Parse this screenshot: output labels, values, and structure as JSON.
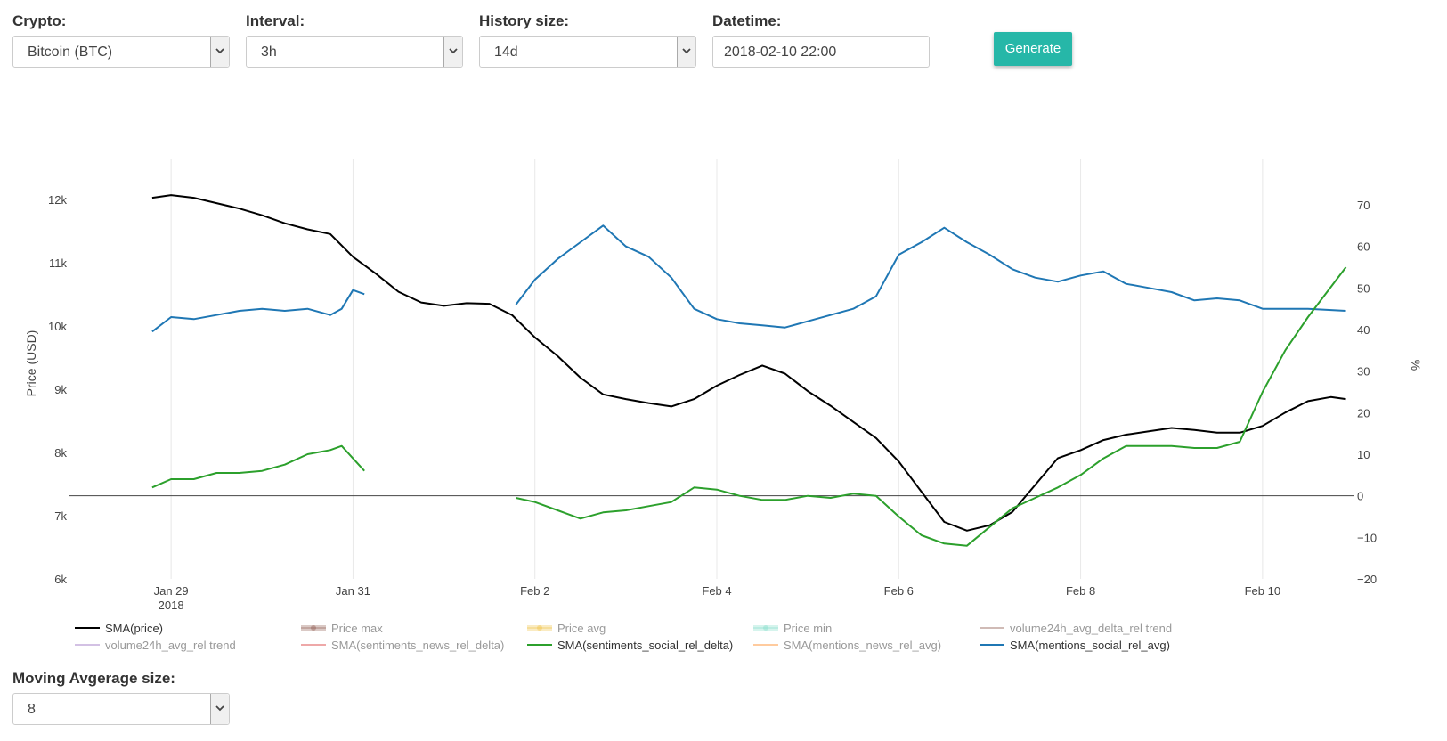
{
  "controls": {
    "crypto": {
      "label": "Crypto:",
      "value": "Bitcoin (BTC)"
    },
    "interval": {
      "label": "Interval:",
      "value": "3h"
    },
    "history": {
      "label": "History size:",
      "value": "14d"
    },
    "datetime": {
      "label": "Datetime:",
      "value": "2018-02-10 22:00"
    },
    "generate_label": "Generate",
    "moving_average": {
      "label": "Moving Avgerage size:",
      "value": "8"
    }
  },
  "colors": {
    "price": "#000000",
    "sentiment": "#2ca02c",
    "mentions": "#1f77b4",
    "accent": "#26b7a8"
  },
  "chart_data": {
    "type": "line",
    "ylabel": "Price (USD)",
    "y2label": "%",
    "ylim": [
      6000,
      12000
    ],
    "y2lim": [
      -20,
      70
    ],
    "yticks": [
      "6k",
      "7k",
      "8k",
      "9k",
      "10k",
      "11k",
      "12k"
    ],
    "y2ticks": [
      "−20",
      "−10",
      "0",
      "10",
      "20",
      "30",
      "40",
      "50",
      "60",
      "70"
    ],
    "xticks": [
      {
        "date": "2018-01-29",
        "label": "Jan 29",
        "sub": "2018"
      },
      {
        "date": "2018-01-31",
        "label": "Jan 31",
        "sub": ""
      },
      {
        "date": "2018-02-02",
        "label": "Feb 2",
        "sub": ""
      },
      {
        "date": "2018-02-04",
        "label": "Feb 4",
        "sub": ""
      },
      {
        "date": "2018-02-06",
        "label": "Feb 6",
        "sub": ""
      },
      {
        "date": "2018-02-08",
        "label": "Feb 8",
        "sub": ""
      },
      {
        "date": "2018-02-10",
        "label": "Feb 10",
        "sub": ""
      }
    ],
    "xlim": [
      "2018-01-28",
      "2018-02-11"
    ],
    "series": [
      {
        "name": "SMA(price)",
        "axis": "y",
        "color": "#000000",
        "points": [
          [
            "2018-01-28 19:00",
            11680
          ],
          [
            "2018-01-29 00:00",
            11720
          ],
          [
            "2018-01-29 06:00",
            11680
          ],
          [
            "2018-01-29 12:00",
            11600
          ],
          [
            "2018-01-29 18:00",
            11520
          ],
          [
            "2018-01-30 00:00",
            11420
          ],
          [
            "2018-01-30 06:00",
            11300
          ],
          [
            "2018-01-30 12:00",
            11210
          ],
          [
            "2018-01-30 18:00",
            11140
          ],
          [
            "2018-01-31 00:00",
            10800
          ],
          [
            "2018-01-31 06:00",
            10550
          ],
          [
            "2018-01-31 12:00",
            10280
          ],
          [
            "2018-01-31 18:00",
            10120
          ],
          [
            "2018-02-01 00:00",
            10070
          ],
          [
            "2018-02-01 06:00",
            10110
          ],
          [
            "2018-02-01 12:00",
            10100
          ],
          [
            "2018-02-01 18:00",
            9930
          ],
          [
            "2018-02-02 00:00",
            9600
          ],
          [
            "2018-02-02 06:00",
            9320
          ],
          [
            "2018-02-02 12:00",
            9000
          ],
          [
            "2018-02-02 18:00",
            8750
          ],
          [
            "2018-02-03 00:00",
            8680
          ],
          [
            "2018-02-03 06:00",
            8620
          ],
          [
            "2018-02-03 12:00",
            8570
          ],
          [
            "2018-02-03 18:00",
            8680
          ],
          [
            "2018-02-04 00:00",
            8880
          ],
          [
            "2018-02-04 06:00",
            9040
          ],
          [
            "2018-02-04 12:00",
            9180
          ],
          [
            "2018-02-04 18:00",
            9060
          ],
          [
            "2018-02-05 00:00",
            8800
          ],
          [
            "2018-02-05 06:00",
            8580
          ],
          [
            "2018-02-05 12:00",
            8340
          ],
          [
            "2018-02-05 18:00",
            8100
          ],
          [
            "2018-02-06 00:00",
            7750
          ],
          [
            "2018-02-06 06:00",
            7300
          ],
          [
            "2018-02-06 12:00",
            6850
          ],
          [
            "2018-02-06 18:00",
            6720
          ],
          [
            "2018-02-07 00:00",
            6800
          ],
          [
            "2018-02-07 06:00",
            7000
          ],
          [
            "2018-02-07 12:00",
            7400
          ],
          [
            "2018-02-07 18:00",
            7800
          ],
          [
            "2018-02-08 00:00",
            7920
          ],
          [
            "2018-02-08 06:00",
            8070
          ],
          [
            "2018-02-08 12:00",
            8150
          ],
          [
            "2018-02-08 18:00",
            8200
          ],
          [
            "2018-02-09 00:00",
            8250
          ],
          [
            "2018-02-09 06:00",
            8220
          ],
          [
            "2018-02-09 12:00",
            8180
          ],
          [
            "2018-02-09 18:00",
            8180
          ],
          [
            "2018-02-10 00:00",
            8280
          ],
          [
            "2018-02-10 06:00",
            8480
          ],
          [
            "2018-02-10 12:00",
            8650
          ],
          [
            "2018-02-10 18:00",
            8710
          ],
          [
            "2018-02-10 22:00",
            8680
          ]
        ]
      },
      {
        "name": "SMA(mentions_social_rel_avg)",
        "axis": "y2",
        "color": "#1f77b4",
        "segments": [
          [
            [
              "2018-01-28 19:00",
              39.5
            ],
            [
              "2018-01-29 00:00",
              43
            ],
            [
              "2018-01-29 06:00",
              42.5
            ],
            [
              "2018-01-29 12:00",
              43.5
            ],
            [
              "2018-01-29 18:00",
              44.5
            ],
            [
              "2018-01-30 00:00",
              45
            ],
            [
              "2018-01-30 06:00",
              44.5
            ],
            [
              "2018-01-30 12:00",
              45
            ],
            [
              "2018-01-30 18:00",
              43.5
            ],
            [
              "2018-01-30 21:00",
              45
            ],
            [
              "2018-01-31 00:00",
              49.5
            ],
            [
              "2018-01-31 03:00",
              48.5
            ]
          ],
          [
            [
              "2018-02-01 19:00",
              46
            ],
            [
              "2018-02-02 00:00",
              52
            ],
            [
              "2018-02-02 06:00",
              57
            ],
            [
              "2018-02-02 12:00",
              61
            ],
            [
              "2018-02-02 18:00",
              65
            ],
            [
              "2018-02-03 00:00",
              60
            ],
            [
              "2018-02-03 06:00",
              57.5
            ],
            [
              "2018-02-03 12:00",
              52.5
            ],
            [
              "2018-02-03 18:00",
              45
            ],
            [
              "2018-02-04 00:00",
              42.5
            ],
            [
              "2018-02-04 06:00",
              41.5
            ],
            [
              "2018-02-04 12:00",
              41
            ],
            [
              "2018-02-04 18:00",
              40.5
            ],
            [
              "2018-02-05 00:00",
              42
            ],
            [
              "2018-02-05 06:00",
              43.5
            ],
            [
              "2018-02-05 12:00",
              45
            ],
            [
              "2018-02-05 18:00",
              48
            ],
            [
              "2018-02-06 00:00",
              58
            ],
            [
              "2018-02-06 06:00",
              61
            ],
            [
              "2018-02-06 12:00",
              64.5
            ],
            [
              "2018-02-06 18:00",
              61
            ],
            [
              "2018-02-07 00:00",
              58
            ],
            [
              "2018-02-07 06:00",
              54.5
            ],
            [
              "2018-02-07 12:00",
              52.5
            ],
            [
              "2018-02-07 18:00",
              51.5
            ],
            [
              "2018-02-08 00:00",
              53
            ],
            [
              "2018-02-08 06:00",
              54
            ],
            [
              "2018-02-08 12:00",
              51
            ],
            [
              "2018-02-08 18:00",
              50
            ],
            [
              "2018-02-09 00:00",
              49
            ],
            [
              "2018-02-09 06:00",
              47
            ],
            [
              "2018-02-09 12:00",
              47.5
            ],
            [
              "2018-02-09 18:00",
              47
            ],
            [
              "2018-02-10 00:00",
              45
            ],
            [
              "2018-02-10 06:00",
              45
            ],
            [
              "2018-02-10 12:00",
              45
            ],
            [
              "2018-02-10 22:00",
              44.5
            ]
          ]
        ]
      },
      {
        "name": "SMA(sentiments_social_rel_delta)",
        "axis": "y2",
        "color": "#2ca02c",
        "segments": [
          [
            [
              "2018-01-28 19:00",
              2
            ],
            [
              "2018-01-29 00:00",
              4
            ],
            [
              "2018-01-29 06:00",
              4
            ],
            [
              "2018-01-29 12:00",
              5.5
            ],
            [
              "2018-01-29 18:00",
              5.5
            ],
            [
              "2018-01-30 00:00",
              6
            ],
            [
              "2018-01-30 06:00",
              7.5
            ],
            [
              "2018-01-30 12:00",
              10
            ],
            [
              "2018-01-30 18:00",
              11
            ],
            [
              "2018-01-30 21:00",
              12
            ],
            [
              "2018-01-31 00:00",
              9
            ],
            [
              "2018-01-31 03:00",
              6
            ]
          ],
          [
            [
              "2018-02-01 19:00",
              -0.5
            ],
            [
              "2018-02-02 00:00",
              -1.5
            ],
            [
              "2018-02-02 06:00",
              -3.5
            ],
            [
              "2018-02-02 12:00",
              -5.5
            ],
            [
              "2018-02-02 18:00",
              -4
            ],
            [
              "2018-02-03 00:00",
              -3.5
            ],
            [
              "2018-02-03 06:00",
              -2.5
            ],
            [
              "2018-02-03 12:00",
              -1.5
            ],
            [
              "2018-02-03 18:00",
              2
            ],
            [
              "2018-02-04 00:00",
              1.5
            ],
            [
              "2018-02-04 06:00",
              0
            ],
            [
              "2018-02-04 12:00",
              -1
            ],
            [
              "2018-02-04 18:00",
              -1
            ],
            [
              "2018-02-05 00:00",
              0
            ],
            [
              "2018-02-05 06:00",
              -0.5
            ],
            [
              "2018-02-05 12:00",
              0.5
            ],
            [
              "2018-02-05 18:00",
              0
            ],
            [
              "2018-02-06 00:00",
              -5
            ],
            [
              "2018-02-06 06:00",
              -9.5
            ],
            [
              "2018-02-06 12:00",
              -11.5
            ],
            [
              "2018-02-06 18:00",
              -12
            ],
            [
              "2018-02-07 00:00",
              -7.5
            ],
            [
              "2018-02-07 06:00",
              -3
            ],
            [
              "2018-02-07 12:00",
              -0.5
            ],
            [
              "2018-02-07 18:00",
              2
            ],
            [
              "2018-02-08 00:00",
              5
            ],
            [
              "2018-02-08 06:00",
              9
            ],
            [
              "2018-02-08 12:00",
              12
            ],
            [
              "2018-02-08 18:00",
              12
            ],
            [
              "2018-02-09 00:00",
              12
            ],
            [
              "2018-02-09 06:00",
              11.5
            ],
            [
              "2018-02-09 12:00",
              11.5
            ],
            [
              "2018-02-09 18:00",
              13
            ],
            [
              "2018-02-10 00:00",
              25
            ],
            [
              "2018-02-10 06:00",
              35
            ],
            [
              "2018-02-10 12:00",
              43
            ],
            [
              "2018-02-10 22:00",
              55
            ]
          ]
        ]
      }
    ],
    "legend": {
      "placement": "bottom",
      "items": [
        {
          "name": "SMA(price)",
          "color": "#000000",
          "visible": true,
          "kind": "line"
        },
        {
          "name": "Price max",
          "color": "#8c564b",
          "visible": false,
          "kind": "band"
        },
        {
          "name": "Price avg",
          "color": "#f0c040",
          "visible": false,
          "kind": "band"
        },
        {
          "name": "Price min",
          "color": "#7fdcc8",
          "visible": false,
          "kind": "band"
        },
        {
          "name": "volume24h_avg_delta_rel trend",
          "color": "#8c564b",
          "visible": false,
          "kind": "line"
        },
        {
          "name": "volume24h_avg_rel trend",
          "color": "#9467bd",
          "visible": false,
          "kind": "line"
        },
        {
          "name": "SMA(sentiments_news_rel_delta)",
          "color": "#d62728",
          "visible": false,
          "kind": "line"
        },
        {
          "name": "SMA(sentiments_social_rel_delta)",
          "color": "#2ca02c",
          "visible": true,
          "kind": "line"
        },
        {
          "name": "SMA(mentions_news_rel_avg)",
          "color": "#ff7f0e",
          "visible": false,
          "kind": "line"
        },
        {
          "name": "SMA(mentions_social_rel_avg)",
          "color": "#1f77b4",
          "visible": true,
          "kind": "line"
        }
      ]
    }
  }
}
